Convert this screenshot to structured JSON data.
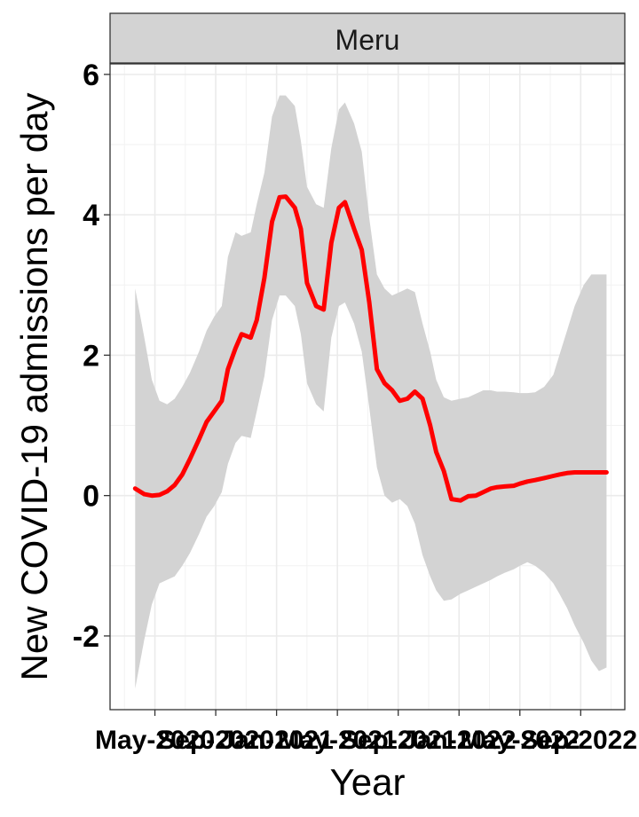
{
  "chart_data": {
    "type": "line",
    "facet_label": "Meru",
    "xlabel": "Year",
    "ylabel": "New COVID-19 admissions per day",
    "ylim": [
      -3.05,
      6.15
    ],
    "y_ticks": [
      -2,
      0,
      2,
      4,
      6
    ],
    "y_tick_labels": [
      "-2",
      "0",
      "2",
      "4",
      "6"
    ],
    "x_tick_labels": [
      "May-2020",
      "Sep-2020",
      "Jan-2021",
      "May-2021",
      "Sep-2021",
      "Jan-2022",
      "May-2022",
      "Sep-2022"
    ],
    "x_tick_months": [
      4,
      8,
      12,
      16,
      20,
      24,
      28,
      32
    ],
    "x_range_months": [
      1.05,
      34.9
    ],
    "grid": true,
    "line_color": "#ff0000",
    "band_color": "#d3d3d3",
    "series": [
      {
        "x_months": [
          2.7,
          3.3,
          3.8,
          4.3,
          4.8,
          5.3,
          5.8,
          6.3,
          6.9,
          7.4,
          7.9,
          8.4,
          8.8,
          9.3,
          9.7,
          10.3,
          10.7,
          11.2,
          11.7,
          12.2,
          12.6,
          13.2,
          13.6,
          14.0,
          14.6,
          15.1,
          15.6,
          16.1,
          16.5,
          17.1,
          17.6,
          18.1,
          18.6,
          19.1,
          19.6,
          20.1,
          20.6,
          21.1,
          21.6,
          22.1,
          22.5,
          23.0,
          23.5,
          24.1,
          24.6,
          25.1,
          25.6,
          26.1,
          26.5,
          27.0,
          27.6,
          28.0,
          28.5,
          29.0,
          29.6,
          30.2,
          30.6,
          31.1,
          31.6,
          32.2,
          32.7,
          33.2,
          33.7
        ],
        "y": [
          0.1,
          0.02,
          0.0,
          0.01,
          0.06,
          0.15,
          0.3,
          0.52,
          0.8,
          1.05,
          1.2,
          1.35,
          1.8,
          2.1,
          2.3,
          2.25,
          2.5,
          3.1,
          3.9,
          4.25,
          4.26,
          4.1,
          3.8,
          3.03,
          2.7,
          2.65,
          3.6,
          4.1,
          4.18,
          3.8,
          3.5,
          2.75,
          1.8,
          1.6,
          1.5,
          1.35,
          1.38,
          1.48,
          1.38,
          1.0,
          0.62,
          0.35,
          -0.05,
          -0.07,
          -0.01,
          0.0,
          0.05,
          0.1,
          0.12,
          0.13,
          0.14,
          0.17,
          0.2,
          0.22,
          0.25,
          0.28,
          0.3,
          0.32,
          0.33,
          0.33,
          0.33,
          0.33,
          0.33
        ],
        "lower": [
          -2.75,
          -2.05,
          -1.55,
          -1.25,
          -1.2,
          -1.15,
          -1.0,
          -0.82,
          -0.55,
          -0.3,
          -0.15,
          0.05,
          0.45,
          0.75,
          0.85,
          0.82,
          1.2,
          1.7,
          2.5,
          2.85,
          2.85,
          2.7,
          2.3,
          1.6,
          1.3,
          1.2,
          2.25,
          2.7,
          2.75,
          2.45,
          2.05,
          1.25,
          0.4,
          0.0,
          -0.1,
          -0.05,
          -0.15,
          -0.4,
          -0.85,
          -1.15,
          -1.35,
          -1.5,
          -1.48,
          -1.4,
          -1.35,
          -1.3,
          -1.25,
          -1.2,
          -1.15,
          -1.1,
          -1.05,
          -1.0,
          -0.95,
          -1.0,
          -1.1,
          -1.25,
          -1.4,
          -1.6,
          -1.85,
          -2.1,
          -2.35,
          -2.5,
          -2.45
        ],
        "upper": [
          2.95,
          2.25,
          1.65,
          1.35,
          1.3,
          1.38,
          1.55,
          1.75,
          2.05,
          2.35,
          2.55,
          2.7,
          3.4,
          3.75,
          3.7,
          3.75,
          4.15,
          4.6,
          5.4,
          5.7,
          5.7,
          5.55,
          5.05,
          4.4,
          4.15,
          4.1,
          4.95,
          5.5,
          5.6,
          5.3,
          4.9,
          3.95,
          3.15,
          2.95,
          2.85,
          2.9,
          2.95,
          2.9,
          2.45,
          2.05,
          1.65,
          1.4,
          1.35,
          1.38,
          1.4,
          1.45,
          1.5,
          1.5,
          1.48,
          1.48,
          1.47,
          1.46,
          1.46,
          1.47,
          1.55,
          1.72,
          2.0,
          2.35,
          2.7,
          3.0,
          3.15,
          3.15,
          3.15
        ]
      }
    ]
  }
}
